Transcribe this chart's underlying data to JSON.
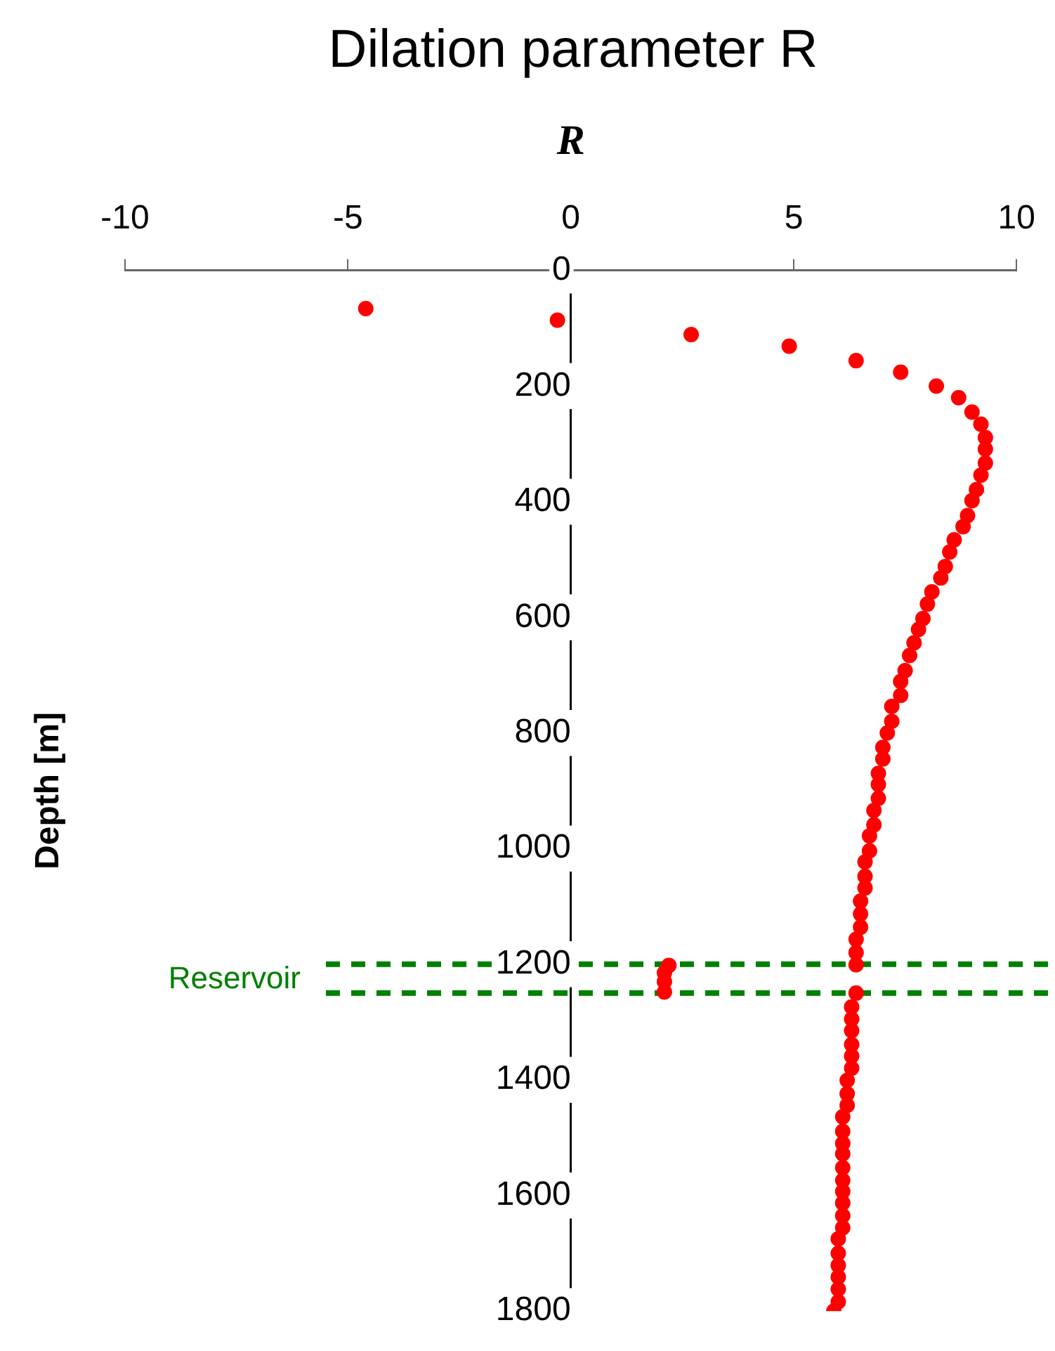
{
  "chart_data": {
    "type": "scatter",
    "title": "Dilation parameter R",
    "xlabel": "R",
    "ylabel": "Depth [m]",
    "color": "#ff0000",
    "marker": "circle",
    "grid": false,
    "legend": false,
    "x": [
      -4.6,
      -0.3,
      2.7,
      4.9,
      6.4,
      7.4,
      8.2,
      8.7,
      9.0,
      9.2,
      9.3,
      9.3,
      9.3,
      9.2,
      9.1,
      9.0,
      8.9,
      8.8,
      8.6,
      8.5,
      8.4,
      8.3,
      8.1,
      8.0,
      7.9,
      7.8,
      7.7,
      7.6,
      7.5,
      7.4,
      7.4,
      7.2,
      7.2,
      7.1,
      7.0,
      7.0,
      6.9,
      6.9,
      6.9,
      6.8,
      6.8,
      6.7,
      6.7,
      6.6,
      6.6,
      6.6,
      6.5,
      6.5,
      6.5,
      6.4,
      6.4,
      6.4,
      2.2,
      2.1,
      2.1,
      2.1,
      6.4,
      6.3,
      6.3,
      6.3,
      6.3,
      6.3,
      6.3,
      6.2,
      6.2,
      6.2,
      6.1,
      6.1,
      6.1,
      6.1,
      6.1,
      6.1,
      6.1,
      6.1,
      6.1,
      6.1,
      6.0,
      6.0,
      6.0,
      6.0,
      6.0,
      6.0,
      5.9
    ],
    "values": [
      66,
      86,
      111,
      131,
      156,
      176,
      200,
      220,
      245,
      266,
      289,
      309,
      333,
      354,
      379,
      398,
      424,
      443,
      466,
      487,
      512,
      532,
      556,
      577,
      602,
      621,
      644,
      666,
      692,
      711,
      735,
      754,
      780,
      800,
      825,
      845,
      870,
      889,
      913,
      934,
      959,
      978,
      1004,
      1023,
      1048,
      1068,
      1091,
      1113,
      1136,
      1157,
      1180,
      1201,
      1202,
      1215,
      1230,
      1248,
      1250,
      1274,
      1295,
      1315,
      1339,
      1359,
      1380,
      1401,
      1424,
      1444,
      1464,
      1489,
      1510,
      1528,
      1552,
      1574,
      1593,
      1613,
      1635,
      1656,
      1675,
      1700,
      1721,
      1741,
      1762,
      1784,
      1800
    ],
    "xlim": [
      -10,
      10
    ],
    "xticks": [
      -10,
      -5,
      0,
      5,
      10
    ],
    "ylim": [
      1800,
      0
    ],
    "yticks": [
      0,
      200,
      400,
      600,
      800,
      1000,
      1200,
      1400,
      1600,
      1800
    ],
    "ref_lines": [
      {
        "axis": "y",
        "value": 1200,
        "label": "Reservoir",
        "color": "#008000",
        "line_style": "dashed"
      },
      {
        "axis": "y",
        "value": 1250,
        "label": null,
        "color": "#008000",
        "line_style": "dashed"
      }
    ]
  }
}
